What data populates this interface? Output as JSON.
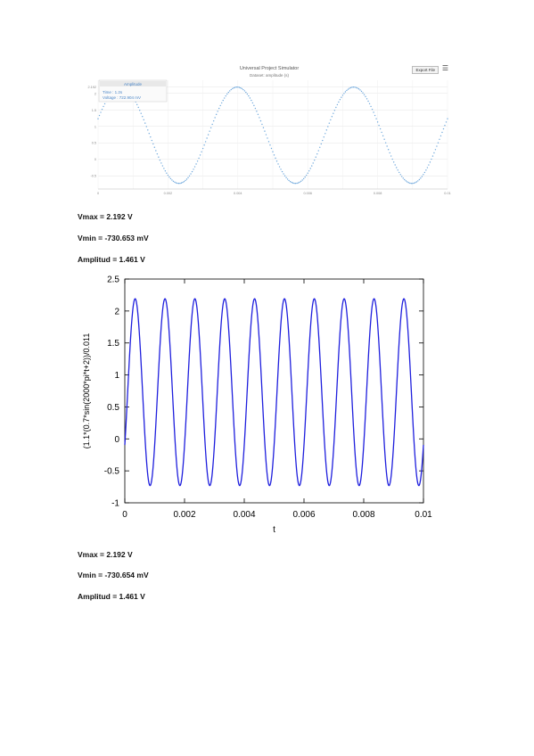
{
  "simulator": {
    "title": "Universal Project Simulator",
    "subtitle": "Dataset: amplitude (s)",
    "export_label": "Export File",
    "menu_icon": "hamburger-icon",
    "cursor_header": "Amplitude",
    "cursor_time_label": "Time : 1.2s",
    "cursor_voltage_label": "Voltage : 722.904 mV",
    "y_ticks": [
      "2.192",
      "2",
      "1.5",
      "1",
      "0.5",
      "0",
      "-0.5"
    ],
    "x_ticks": [
      "0",
      "0.002",
      "0.004",
      "0.006",
      "0.008",
      "0.01"
    ],
    "line_color": "#6fa8dc",
    "chart_data": {
      "type": "scatter",
      "function": "0.7307 + 1.4613*sin(2*pi*300*t)",
      "x_range": [
        0,
        0.01
      ],
      "ylim": [
        -0.9,
        2.4
      ]
    }
  },
  "stats1": {
    "vmax": "Vmax = 2.192 V",
    "vmin": "Vmin = -730.653 mV",
    "amplitud": "Amplitud = 1.461 V"
  },
  "plot": {
    "ylabel": "(1.1*(0.7*sin(2000*pi*t+2))/0.011",
    "xlabel": "t",
    "line_color": "#1f1fdd",
    "chart_data": {
      "type": "line",
      "title": "",
      "xlabel": "t",
      "ylabel": "(1.1*(0.7*sin(2000*pi*t+2))/0.011",
      "xlim": [
        0,
        0.01
      ],
      "ylim": [
        -1,
        2.5
      ],
      "x_ticks": [
        0,
        0.002,
        0.004,
        0.006,
        0.008,
        0.01
      ],
      "x_tick_labels": [
        "0",
        "0.002",
        "0.004",
        "0.006",
        "0.008",
        "0.01"
      ],
      "y_ticks": [
        -1,
        -0.5,
        0,
        0.5,
        1,
        1.5,
        2,
        2.5
      ],
      "y_tick_labels": [
        "-1",
        "-0.5",
        "0",
        "0.5",
        "1",
        "1.5",
        "2",
        "2.5"
      ],
      "series": [
        {
          "function": "0.7307 + 1.4613*sin(2*pi*1000*t - 0.6)",
          "max": 2.192,
          "min": -0.7307
        }
      ]
    }
  },
  "stats2": {
    "vmax": "Vmax = 2.192 V",
    "vmin": "Vmin = -730.654 mV",
    "amplitud": "Amplitud = 1.461 V"
  }
}
